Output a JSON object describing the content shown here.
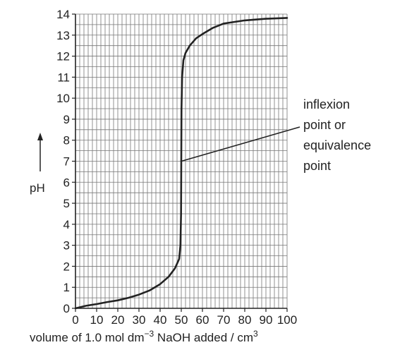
{
  "chart_data": {
    "type": "line",
    "title": "",
    "ylabel": "pH",
    "xlabel": {
      "prefix": "volume of 1.0 mol dm",
      "prefix_sup": "−3",
      "middle": " NaOH added / cm",
      "suffix_sup": "3"
    },
    "xlim": [
      0,
      100
    ],
    "ylim": [
      0,
      14
    ],
    "grid": true,
    "x_ticks": [
      0,
      10,
      20,
      30,
      40,
      50,
      60,
      70,
      80,
      90,
      100
    ],
    "y_ticks": [
      0,
      1,
      2,
      3,
      4,
      5,
      6,
      7,
      8,
      9,
      10,
      11,
      12,
      13,
      14
    ],
    "series": [
      {
        "x": [
          0,
          5,
          10,
          15,
          20,
          25,
          30,
          35,
          40,
          44,
          47,
          49,
          49.6,
          49.9,
          50,
          50.1,
          50.4,
          51,
          52,
          54,
          57,
          60,
          65,
          70,
          80,
          90,
          100
        ],
        "y": [
          0,
          0.12,
          0.2,
          0.3,
          0.38,
          0.5,
          0.65,
          0.85,
          1.15,
          1.5,
          1.9,
          2.35,
          3.0,
          4.5,
          7.0,
          9.5,
          11.0,
          11.8,
          12.15,
          12.5,
          12.85,
          13.05,
          13.35,
          13.55,
          13.7,
          13.78,
          13.82
        ]
      }
    ],
    "annotation": {
      "lines": [
        "inflexion",
        "point or",
        "equivalence",
        "point"
      ],
      "points_to": [
        50,
        7
      ]
    },
    "colors": {
      "curve": "#222222",
      "grid": "#777777",
      "axes": "#222222"
    }
  }
}
